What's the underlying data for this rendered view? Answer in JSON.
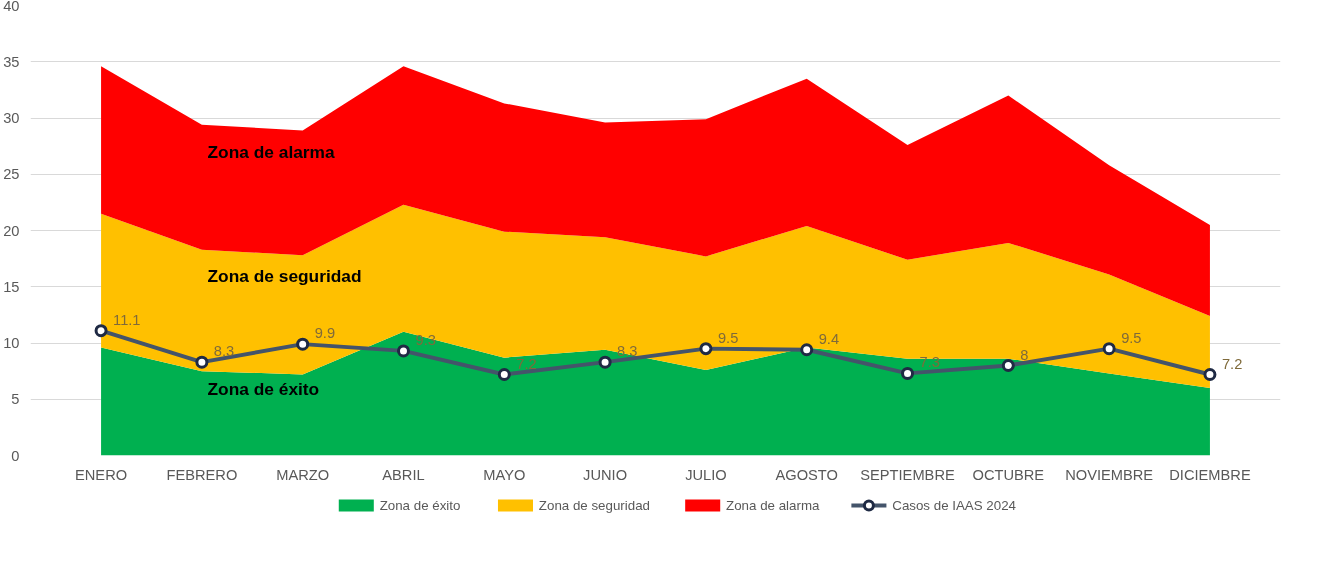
{
  "chart_data": {
    "type": "area",
    "stacked": true,
    "categories": [
      "ENERO",
      "FEBRERO",
      "MARZO",
      "ABRIL",
      "MAYO",
      "JUNIO",
      "JULIO",
      "AGOSTO",
      "SEPTIEMBRE",
      "OCTUBRE",
      "NOVIEMBRE",
      "DICIEMBRE"
    ],
    "series": [
      {
        "name": "Zona de éxito",
        "color": "#00b050",
        "values": [
          9.6,
          7.5,
          7.2,
          11.0,
          8.7,
          9.4,
          7.6,
          9.6,
          8.6,
          8.6,
          7.3,
          6.0
        ]
      },
      {
        "name": "Zona de seguridad",
        "color": "#ffc000",
        "values": [
          11.9,
          10.8,
          10.6,
          11.3,
          11.2,
          10.0,
          10.1,
          10.8,
          8.8,
          10.3,
          8.8,
          6.4
        ]
      },
      {
        "name": "Zona de alarma",
        "color": "#ff0000",
        "values": [
          13.1,
          11.1,
          11.1,
          12.3,
          11.4,
          10.2,
          12.2,
          13.1,
          10.2,
          13.1,
          9.7,
          8.1
        ]
      },
      {
        "name": "Casos de IAAS 2024",
        "color": "#44546a",
        "type": "line",
        "marker": "circle",
        "data_labels": true,
        "values": [
          11.1,
          8.3,
          9.9,
          9.3,
          7.2,
          8.3,
          9.5,
          9.4,
          7.3,
          8,
          9.5,
          7.2
        ]
      }
    ],
    "annotations": [
      "Zona de alarma",
      "Zona de seguridad",
      "Zona de éxito"
    ],
    "ylim": [
      0,
      40
    ],
    "yticks": [
      0,
      5,
      10,
      15,
      20,
      25,
      30,
      35,
      40
    ],
    "grid": "y",
    "legend": "bottom"
  }
}
